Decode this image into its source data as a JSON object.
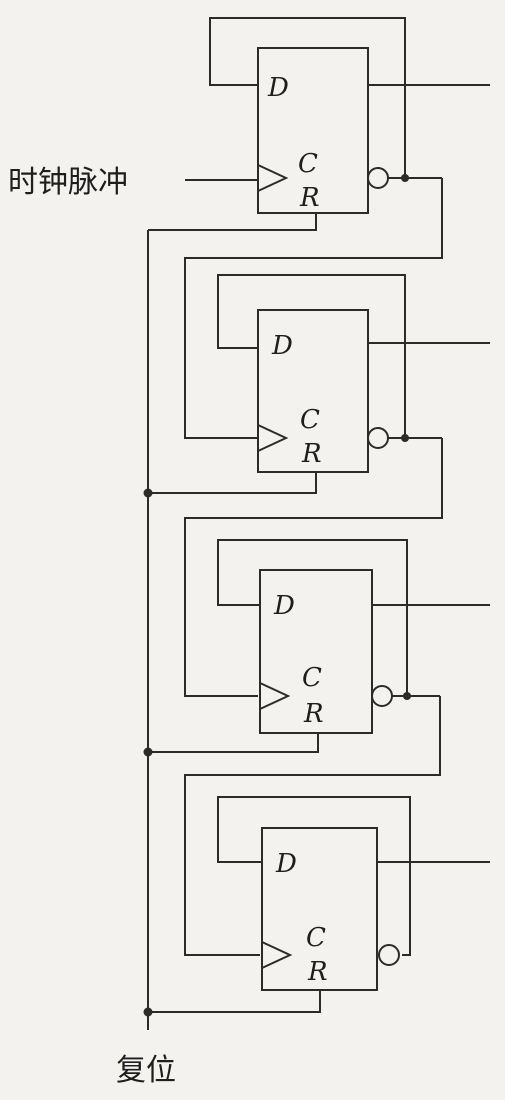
{
  "labels": {
    "clock": "时钟脉冲",
    "reset": "复位"
  },
  "pins": {
    "d": "D",
    "c": "C",
    "r": "R"
  },
  "flip_flops": [
    {
      "id": "ff1"
    },
    {
      "id": "ff2"
    },
    {
      "id": "ff3"
    },
    {
      "id": "ff4"
    }
  ],
  "colors": {
    "line": "#2b2b2b",
    "background": "#f4f2ee",
    "text": "#1e1e1e"
  }
}
